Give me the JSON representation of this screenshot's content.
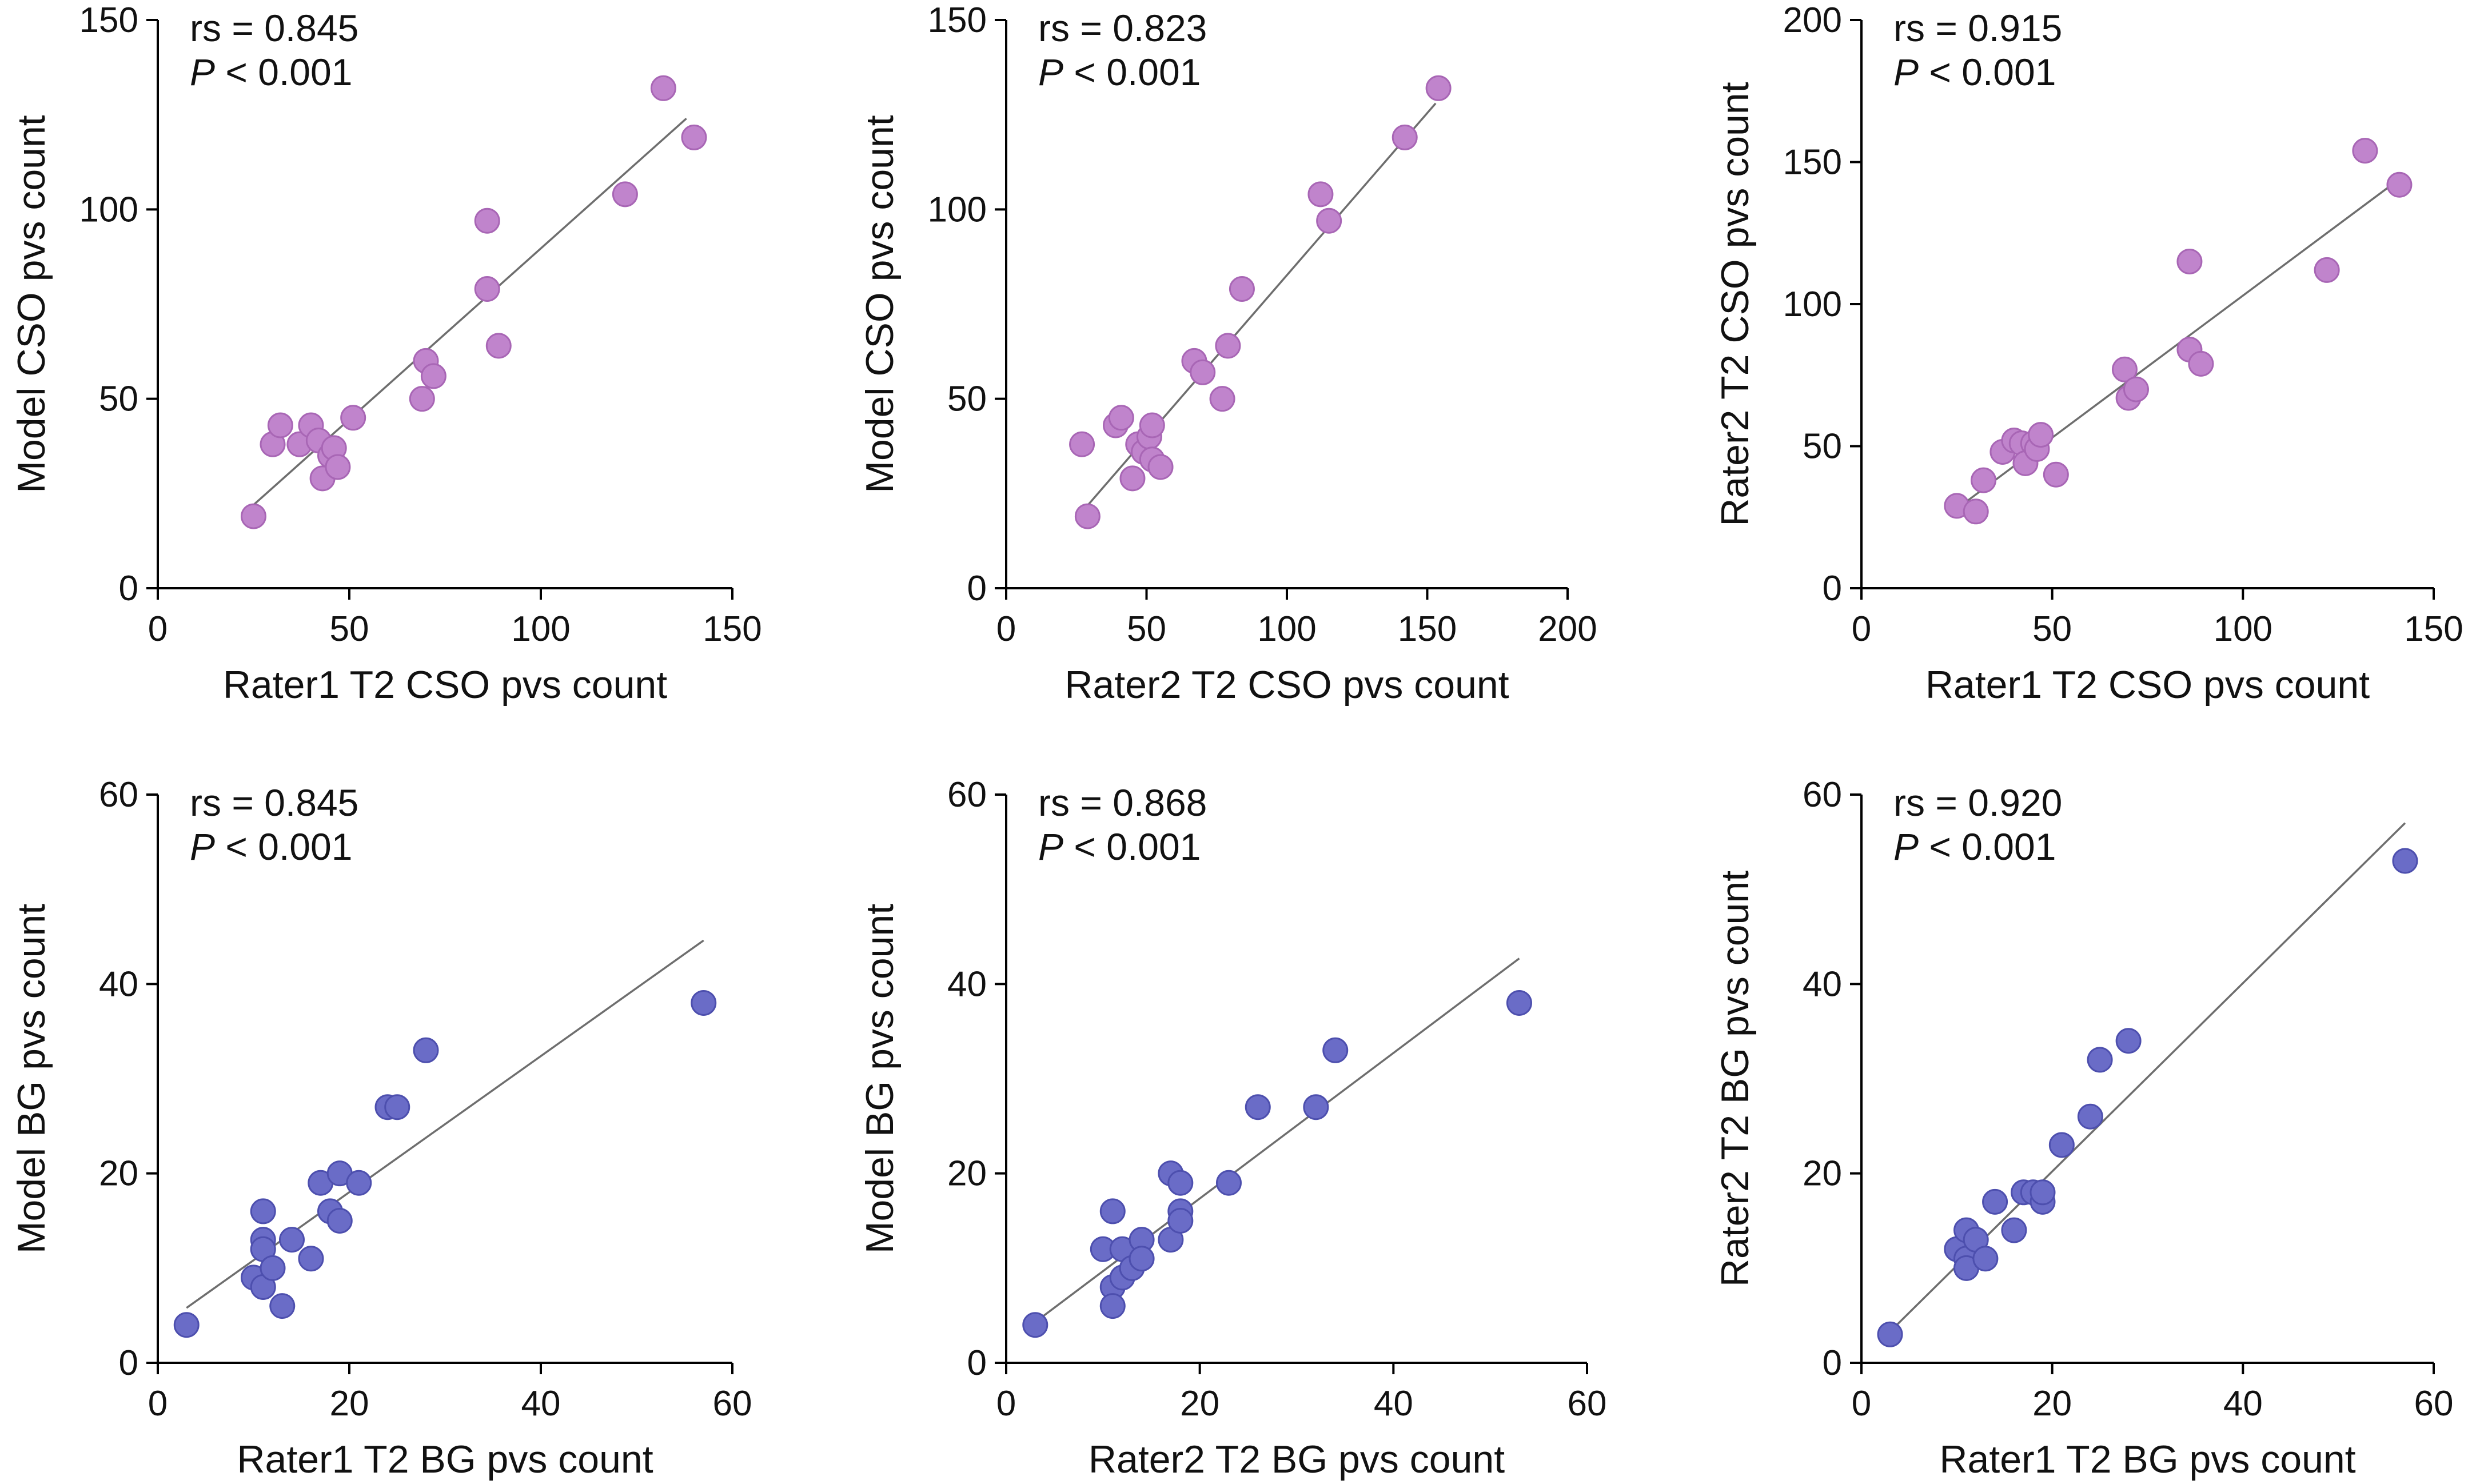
{
  "colors": {
    "cso_points": "#c084cc",
    "cso_points_stroke": "#a866b5",
    "bg_points": "#6a6cc7",
    "bg_points_stroke": "#4d4fae",
    "fit_line": "#6e6e6e",
    "axis": "#000000"
  },
  "chart_data": [
    {
      "type": "scatter",
      "id": "a",
      "xlabel": "Rater1 T2 CSO pvs count",
      "ylabel": "Model CSO pvs count",
      "xlim": [
        0,
        150
      ],
      "ylim": [
        0,
        150
      ],
      "xticks": [
        0,
        50,
        100,
        150
      ],
      "yticks": [
        0,
        50,
        100,
        150
      ],
      "stat_rs_label": "rs = 0.845",
      "stat_p_italic": "P",
      "stat_p_value": " < 0.001",
      "color": "cso",
      "fit_line": [
        [
          25,
          22
        ],
        [
          138,
          124
        ]
      ],
      "points": [
        [
          25,
          19
        ],
        [
          30,
          38
        ],
        [
          32,
          43
        ],
        [
          37,
          38
        ],
        [
          40,
          43
        ],
        [
          42,
          39
        ],
        [
          43,
          29
        ],
        [
          45,
          35
        ],
        [
          46,
          37
        ],
        [
          47,
          32
        ],
        [
          51,
          45
        ],
        [
          69,
          50
        ],
        [
          70,
          60
        ],
        [
          72,
          56
        ],
        [
          86,
          97
        ],
        [
          86,
          79
        ],
        [
          89,
          64
        ],
        [
          122,
          104
        ],
        [
          132,
          132
        ],
        [
          140,
          119
        ]
      ]
    },
    {
      "type": "scatter",
      "id": "b",
      "xlabel": "Rater2 T2 CSO pvs count",
      "ylabel": "Model CSO pvs count",
      "xlim": [
        0,
        200
      ],
      "ylim": [
        0,
        150
      ],
      "xticks": [
        0,
        50,
        100,
        150,
        200
      ],
      "yticks": [
        0,
        50,
        100,
        150
      ],
      "stat_rs_label": "rs = 0.823",
      "stat_p_italic": "P",
      "stat_p_value": " < 0.001",
      "color": "cso",
      "fit_line": [
        [
          28,
          21
        ],
        [
          153,
          128
        ]
      ],
      "points": [
        [
          27,
          38
        ],
        [
          29,
          19
        ],
        [
          39,
          43
        ],
        [
          41,
          45
        ],
        [
          45,
          29
        ],
        [
          47,
          38
        ],
        [
          49,
          36
        ],
        [
          51,
          40
        ],
        [
          52,
          43
        ],
        [
          52,
          34
        ],
        [
          55,
          32
        ],
        [
          67,
          60
        ],
        [
          70,
          57
        ],
        [
          77,
          50
        ],
        [
          79,
          64
        ],
        [
          84,
          79
        ],
        [
          112,
          104
        ],
        [
          115,
          97
        ],
        [
          142,
          119
        ],
        [
          154,
          132
        ]
      ]
    },
    {
      "type": "scatter",
      "id": "c",
      "xlabel": "Rater1 T2 CSO pvs count",
      "ylabel": "Rater2 T2 CSO pvs count",
      "xlim": [
        0,
        150
      ],
      "ylim": [
        0,
        200
      ],
      "xticks": [
        0,
        50,
        100,
        150
      ],
      "yticks": [
        0,
        50,
        100,
        150,
        200
      ],
      "stat_rs_label": "rs = 0.915",
      "stat_p_italic": "P",
      "stat_p_value": " < 0.001",
      "color": "cso",
      "fit_line": [
        [
          26,
          29
        ],
        [
          140,
          143
        ]
      ],
      "points": [
        [
          25,
          29
        ],
        [
          30,
          27
        ],
        [
          32,
          38
        ],
        [
          37,
          48
        ],
        [
          40,
          52
        ],
        [
          42,
          51
        ],
        [
          43,
          44
        ],
        [
          45,
          51
        ],
        [
          46,
          49
        ],
        [
          47,
          54
        ],
        [
          51,
          40
        ],
        [
          69,
          77
        ],
        [
          70,
          67
        ],
        [
          72,
          70
        ],
        [
          86,
          115
        ],
        [
          86,
          84
        ],
        [
          89,
          79
        ],
        [
          122,
          112
        ],
        [
          132,
          154
        ],
        [
          141,
          142
        ]
      ]
    },
    {
      "type": "scatter",
      "id": "d",
      "xlabel": "Rater1 T2 BG pvs count",
      "ylabel": "Model BG pvs count",
      "xlim": [
        0,
        60
      ],
      "ylim": [
        0,
        60
      ],
      "xticks": [
        0,
        20,
        40,
        60
      ],
      "yticks": [
        0,
        20,
        40,
        60
      ],
      "stat_rs_label": "rs = 0.845",
      "stat_p_italic": "P",
      "stat_p_value": " < 0.001",
      "color": "bg",
      "fit_line": [
        [
          3,
          5.8
        ],
        [
          57,
          44.6
        ]
      ],
      "points": [
        [
          3,
          4
        ],
        [
          10,
          9
        ],
        [
          11,
          16
        ],
        [
          11,
          13
        ],
        [
          11,
          12
        ],
        [
          11,
          8
        ],
        [
          12,
          10
        ],
        [
          13,
          6
        ],
        [
          14,
          13
        ],
        [
          16,
          11
        ],
        [
          17,
          19
        ],
        [
          18,
          16
        ],
        [
          19,
          20
        ],
        [
          19,
          15
        ],
        [
          21,
          19
        ],
        [
          24,
          27
        ],
        [
          25,
          27
        ],
        [
          28,
          33
        ],
        [
          57,
          38
        ]
      ]
    },
    {
      "type": "scatter",
      "id": "e",
      "xlabel": "Rater2 T2 BG pvs count",
      "ylabel": "Model BG pvs count",
      "xlim": [
        0,
        60
      ],
      "ylim": [
        0,
        60
      ],
      "xticks": [
        0,
        20,
        40,
        60
      ],
      "yticks": [
        0,
        20,
        40,
        60
      ],
      "stat_rs_label": "rs = 0.868",
      "stat_p_italic": "P",
      "stat_p_value": " < 0.001",
      "color": "bg",
      "fit_line": [
        [
          3,
          4.3
        ],
        [
          53,
          42.7
        ]
      ],
      "points": [
        [
          3,
          4
        ],
        [
          10,
          12
        ],
        [
          11,
          16
        ],
        [
          11,
          8
        ],
        [
          11,
          6
        ],
        [
          12,
          12
        ],
        [
          12,
          9
        ],
        [
          13,
          10
        ],
        [
          14,
          13
        ],
        [
          14,
          11
        ],
        [
          17,
          20
        ],
        [
          17,
          13
        ],
        [
          18,
          19
        ],
        [
          18,
          16
        ],
        [
          18,
          15
        ],
        [
          23,
          19
        ],
        [
          26,
          27
        ],
        [
          32,
          27
        ],
        [
          34,
          33
        ],
        [
          53,
          38
        ]
      ]
    },
    {
      "type": "scatter",
      "id": "f",
      "xlabel": "Rater1 T2 BG pvs count",
      "ylabel": "Rater2 T2 BG pvs count",
      "xlim": [
        0,
        60
      ],
      "ylim": [
        0,
        60
      ],
      "xticks": [
        0,
        20,
        40,
        60
      ],
      "yticks": [
        0,
        20,
        40,
        60
      ],
      "stat_rs_label": "rs = 0.920",
      "stat_p_italic": "P",
      "stat_p_value": " < 0.001",
      "color": "bg",
      "fit_line": [
        [
          3,
          3.3
        ],
        [
          57,
          57
        ]
      ],
      "points": [
        [
          3,
          3
        ],
        [
          10,
          12
        ],
        [
          11,
          14
        ],
        [
          11,
          11
        ],
        [
          11,
          10
        ],
        [
          12,
          13
        ],
        [
          13,
          11
        ],
        [
          14,
          17
        ],
        [
          16,
          14
        ],
        [
          17,
          18
        ],
        [
          18,
          18
        ],
        [
          19,
          17
        ],
        [
          19,
          18
        ],
        [
          21,
          23
        ],
        [
          24,
          26
        ],
        [
          25,
          32
        ],
        [
          28,
          34
        ],
        [
          57,
          53
        ]
      ]
    }
  ]
}
